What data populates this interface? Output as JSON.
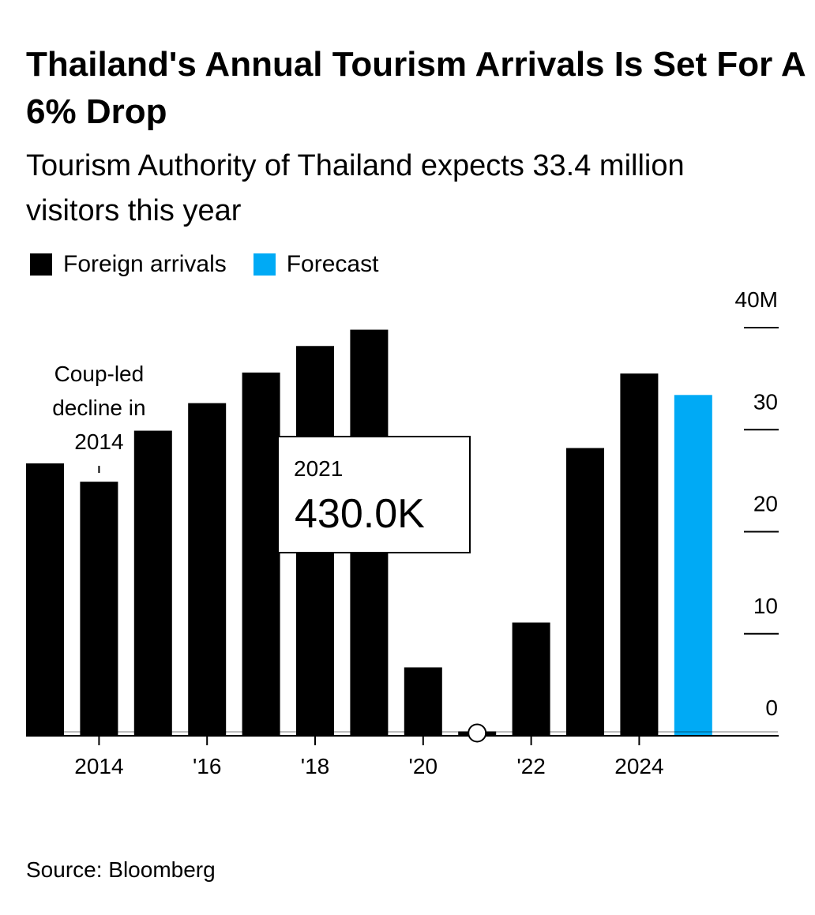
{
  "chart_data": {
    "type": "bar",
    "title": "Thailand's Annual Tourism Arrivals Is Set For A 6% Drop",
    "subtitle": "Tourism Authority of Thailand expects 33.4 million visitors this year",
    "categories": [
      null,
      "2014",
      null,
      "'16",
      null,
      "'18",
      null,
      "'20",
      null,
      "'22",
      null,
      "2024",
      null
    ],
    "series": [
      {
        "name": "Foreign arrivals",
        "color": "#000000",
        "values": [
          26.7,
          24.9,
          29.9,
          32.6,
          35.6,
          38.2,
          39.8,
          6.7,
          0.43,
          11.1,
          28.2,
          35.5,
          null
        ]
      },
      {
        "name": "Forecast",
        "color": "#00aaf5",
        "values": [
          null,
          null,
          null,
          null,
          null,
          null,
          null,
          null,
          null,
          null,
          null,
          null,
          33.4
        ]
      }
    ],
    "ylim": [
      0,
      40
    ],
    "yticks": [
      0,
      10,
      20,
      30,
      {
        "value": 40,
        "label": "40M"
      }
    ],
    "annotation": [
      "Coup-led",
      "decline in",
      "2014"
    ],
    "tooltip": {
      "title": "2021",
      "text": "430.0K"
    },
    "source": "Source: Bloomberg"
  }
}
